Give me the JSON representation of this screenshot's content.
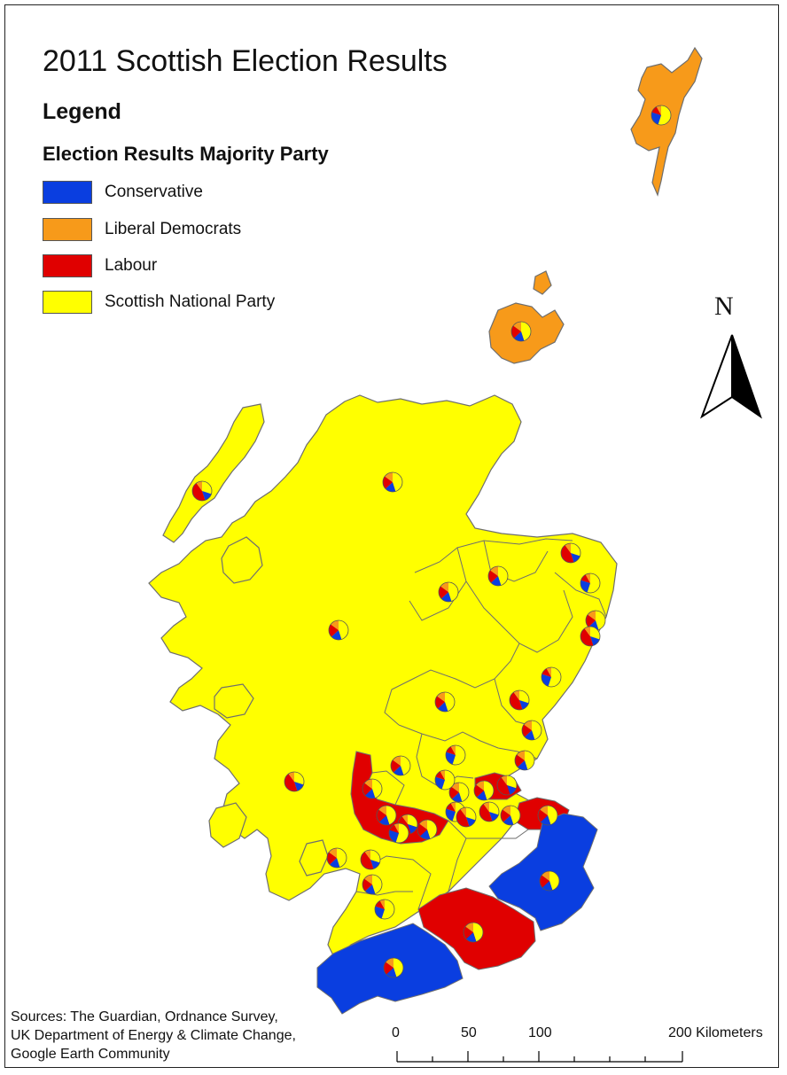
{
  "title": "2011 Scottish Election Results",
  "legend": {
    "heading": "Legend",
    "subheading": "Election Results Majority Party",
    "items": [
      {
        "label": "Conservative",
        "color": "#0a3ee0"
      },
      {
        "label": "Liberal Democrats",
        "color": "#f79a1a"
      },
      {
        "label": "Labour",
        "color": "#e00000"
      },
      {
        "label": "Scottish National Party",
        "color": "#ffff00"
      }
    ]
  },
  "north_arrow": {
    "label": "N"
  },
  "sources": {
    "line1": "Sources: The Guardian, Ordnance Survey,",
    "line2": "UK Department of Energy & Climate Change,",
    "line3": "Google Earth Community"
  },
  "scale_bar": {
    "labels": [
      "0",
      "50",
      "100",
      "200 Kilometers"
    ]
  },
  "colors": {
    "boundary": "#6e6e6e",
    "background": "#ffffff"
  }
}
